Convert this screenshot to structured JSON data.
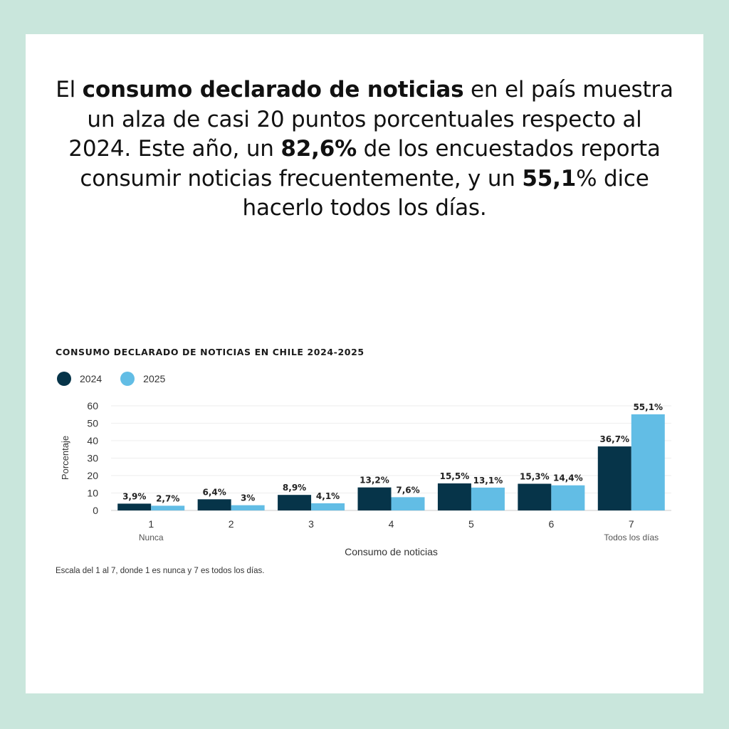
{
  "headline": {
    "p1": "El ",
    "b1": "consumo declarado de noticias",
    "p2": " en el país muestra un alza de casi 20 puntos porcentuales respecto al 2024. Este año, un ",
    "b2": "82,6%",
    "p3": " de los encuestados reporta consumir noticias frecuentemente, y un ",
    "b3": "55,1",
    "p4": "% dice hacerlo todos los días."
  },
  "footnote": "Escala del 1 al 7, donde 1 es nunca y 7 es todos los días.",
  "colors": {
    "s2024": "#063449",
    "s2025": "#62bde5",
    "border": "#c9e6dc"
  },
  "chart_data": {
    "type": "bar",
    "title": "CONSUMO DECLARADO DE NOTICIAS EN CHILE 2024-2025",
    "xlabel": "Consumo de noticias",
    "ylabel": "Porcentaje",
    "ylim": [
      0,
      60
    ],
    "yticks": [
      0,
      10,
      20,
      30,
      40,
      50,
      60
    ],
    "categories": [
      "1",
      "2",
      "3",
      "4",
      "5",
      "6",
      "7"
    ],
    "category_sublabels": [
      "Nunca",
      "",
      "",
      "",
      "",
      "",
      "Todos los días"
    ],
    "legend_position": "top-left",
    "grid": true,
    "series": [
      {
        "name": "2024",
        "values": [
          3.9,
          6.4,
          8.9,
          13.2,
          15.5,
          15.3,
          36.7
        ],
        "labels": [
          "3,9%",
          "6,4%",
          "8,9%",
          "13,2%",
          "15,5%",
          "15,3%",
          "36,7%"
        ]
      },
      {
        "name": "2025",
        "values": [
          2.7,
          3.0,
          4.1,
          7.6,
          13.1,
          14.4,
          55.1
        ],
        "labels": [
          "2,7%",
          "3%",
          "4,1%",
          "7,6%",
          "13,1%",
          "14,4%",
          "55,1%"
        ]
      }
    ]
  }
}
